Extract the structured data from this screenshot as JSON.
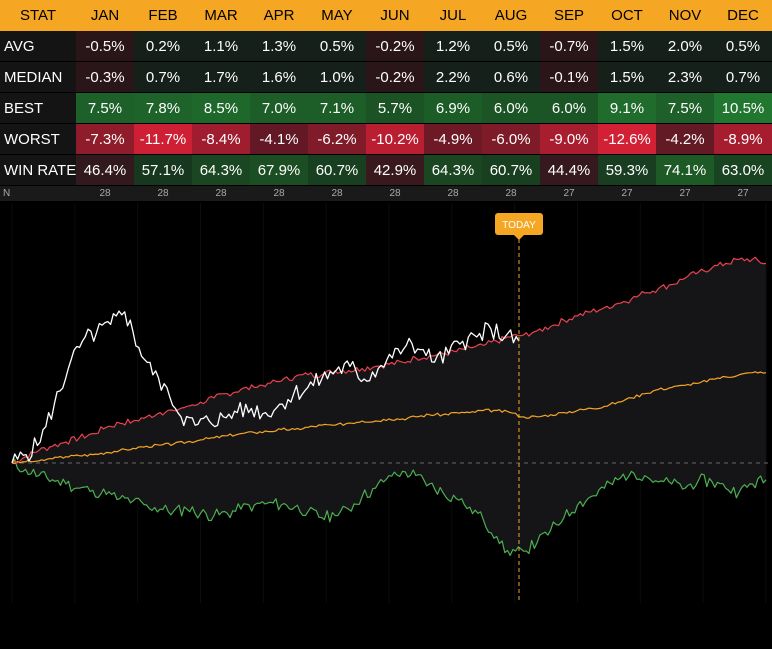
{
  "header": {
    "stat_label": "STAT",
    "months": [
      "JAN",
      "FEB",
      "MAR",
      "APR",
      "MAY",
      "JUN",
      "JUL",
      "AUG",
      "SEP",
      "OCT",
      "NOV",
      "DEC"
    ]
  },
  "rows": [
    {
      "label": "AVG",
      "values": [
        "-0.5%",
        "0.2%",
        "1.1%",
        "1.3%",
        "0.5%",
        "-0.2%",
        "1.2%",
        "0.5%",
        "-0.7%",
        "1.5%",
        "2.0%",
        "0.5%"
      ]
    },
    {
      "label": "MEDIAN",
      "values": [
        "-0.3%",
        "0.7%",
        "1.7%",
        "1.6%",
        "1.0%",
        "-0.2%",
        "2.2%",
        "0.6%",
        "-0.1%",
        "1.5%",
        "2.3%",
        "0.7%"
      ]
    },
    {
      "label": "BEST",
      "values": [
        "7.5%",
        "7.8%",
        "8.5%",
        "7.0%",
        "7.1%",
        "5.7%",
        "6.9%",
        "6.0%",
        "6.0%",
        "9.1%",
        "7.5%",
        "10.5%"
      ]
    },
    {
      "label": "WORST",
      "values": [
        "-7.3%",
        "-11.7%",
        "-8.4%",
        "-4.1%",
        "-6.2%",
        "-10.2%",
        "-4.9%",
        "-6.0%",
        "-9.0%",
        "-12.6%",
        "-4.2%",
        "-8.9%"
      ]
    },
    {
      "label": "WIN RATE",
      "values": [
        "46.4%",
        "57.1%",
        "64.3%",
        "67.9%",
        "60.7%",
        "42.9%",
        "64.3%",
        "60.7%",
        "44.4%",
        "59.3%",
        "74.1%",
        "63.0%"
      ]
    }
  ],
  "n_row": {
    "label": "N",
    "values": [
      "28",
      "28",
      "28",
      "28",
      "28",
      "28",
      "28",
      "28",
      "27",
      "27",
      "27",
      "27"
    ]
  },
  "chart_data": {
    "type": "line",
    "today_label": "TODAY",
    "colors": {
      "best": "#e8434f",
      "median": "#f5a623",
      "worst": "#4caf50",
      "current": "#ffffff"
    },
    "note_units": "cumulative performance index; baseline = 0",
    "series": [
      {
        "key": "best",
        "values": [
          0,
          3,
          6,
          8,
          10,
          12,
          14,
          17,
          19,
          20,
          22,
          24,
          25,
          27,
          29,
          31,
          33,
          35,
          36,
          38,
          39,
          41,
          42,
          42,
          44,
          44,
          45,
          46,
          47,
          48,
          50,
          51,
          52,
          53,
          55,
          56,
          58,
          60,
          61,
          63,
          65,
          68,
          70,
          72,
          74,
          76,
          78,
          81,
          83,
          85,
          88,
          91,
          93,
          95,
          97,
          97,
          95
        ]
      },
      {
        "key": "median",
        "values": [
          0,
          0.5,
          1,
          2,
          3,
          3.5,
          4,
          5,
          6,
          7,
          8,
          8.5,
          9,
          10,
          11,
          12,
          13,
          14,
          14.5,
          15,
          16,
          16,
          17,
          18,
          18,
          19,
          20,
          20,
          21,
          21,
          22,
          23,
          23,
          24,
          24,
          25,
          25,
          24,
          22,
          22,
          23,
          24,
          25,
          26,
          27,
          29,
          31,
          33,
          35,
          36,
          37,
          38,
          40,
          41,
          42,
          43,
          43
        ]
      },
      {
        "key": "worst",
        "values": [
          0,
          -3,
          -6,
          -8,
          -10,
          -12,
          -13,
          -15,
          -17,
          -18,
          -20,
          -22,
          -23,
          -22,
          -24,
          -25,
          -24,
          -22,
          -20,
          -19,
          -20,
          -21,
          -23,
          -26,
          -25,
          -22,
          -16,
          -12,
          -6,
          -4,
          -6,
          -10,
          -14,
          -17,
          -21,
          -27,
          -35,
          -44,
          -42,
          -38,
          -32,
          -26,
          -20,
          -16,
          -12,
          -8,
          -4,
          -6,
          -9,
          -10,
          -12,
          -8,
          -9,
          -12,
          -14,
          -10,
          -8
        ]
      },
      {
        "key": "current",
        "values": [
          0,
          4,
          10,
          28,
          45,
          58,
          62,
          66,
          72,
          55,
          42,
          36,
          22,
          18,
          20,
          22,
          24,
          26,
          24,
          28,
          33,
          36,
          40,
          44,
          46,
          40,
          45,
          50,
          56,
          54,
          48,
          52,
          58,
          60,
          64,
          60,
          58
        ]
      }
    ]
  }
}
